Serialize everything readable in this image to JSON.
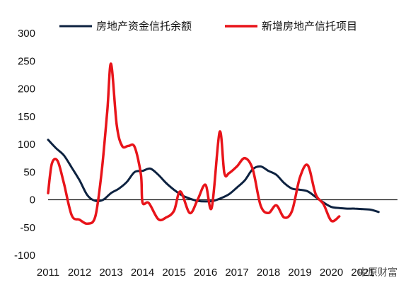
{
  "chart_data": {
    "type": "line",
    "title": "",
    "xlabel": "",
    "ylabel": "",
    "ylim": [
      -100,
      300
    ],
    "yticks": [
      300,
      250,
      200,
      150,
      100,
      50,
      0,
      -50,
      -100
    ],
    "xlim": [
      2011,
      2022.1
    ],
    "xticks": [
      "2011",
      "2012",
      "2013",
      "2014",
      "2015",
      "2016",
      "2017",
      "2018",
      "2019",
      "2020",
      "2021"
    ],
    "grid": false,
    "zero_line": true,
    "legend_position": "top",
    "series": [
      {
        "name": "房地产资金信托余额",
        "color": "#0d2240",
        "points": [
          [
            2011.0,
            108
          ],
          [
            2011.25,
            93
          ],
          [
            2011.5,
            80
          ],
          [
            2011.75,
            58
          ],
          [
            2012.0,
            35
          ],
          [
            2012.25,
            8
          ],
          [
            2012.5,
            -2
          ],
          [
            2012.75,
            0
          ],
          [
            2013.0,
            12
          ],
          [
            2013.25,
            20
          ],
          [
            2013.5,
            32
          ],
          [
            2013.75,
            50
          ],
          [
            2014.0,
            52
          ],
          [
            2014.25,
            56
          ],
          [
            2014.5,
            45
          ],
          [
            2014.75,
            30
          ],
          [
            2015.0,
            18
          ],
          [
            2015.25,
            8
          ],
          [
            2015.5,
            2
          ],
          [
            2015.75,
            -2
          ],
          [
            2016.0,
            -3
          ],
          [
            2016.25,
            -2
          ],
          [
            2016.5,
            3
          ],
          [
            2016.75,
            10
          ],
          [
            2017.0,
            22
          ],
          [
            2017.25,
            35
          ],
          [
            2017.5,
            55
          ],
          [
            2017.75,
            60
          ],
          [
            2018.0,
            52
          ],
          [
            2018.25,
            45
          ],
          [
            2018.5,
            30
          ],
          [
            2018.75,
            20
          ],
          [
            2019.0,
            18
          ],
          [
            2019.25,
            15
          ],
          [
            2019.5,
            5
          ],
          [
            2019.75,
            -5
          ],
          [
            2020.0,
            -13
          ],
          [
            2020.25,
            -15
          ],
          [
            2020.5,
            -16
          ],
          [
            2020.75,
            -16
          ],
          [
            2021.0,
            -17
          ],
          [
            2021.25,
            -18
          ],
          [
            2021.5,
            -22
          ]
        ]
      },
      {
        "name": "新增房地产信托项目",
        "color": "#e8141a",
        "points": [
          [
            2011.0,
            12
          ],
          [
            2011.12,
            65
          ],
          [
            2011.3,
            70
          ],
          [
            2011.5,
            30
          ],
          [
            2011.75,
            -28
          ],
          [
            2012.0,
            -36
          ],
          [
            2012.25,
            -43
          ],
          [
            2012.5,
            -30
          ],
          [
            2012.7,
            50
          ],
          [
            2012.88,
            160
          ],
          [
            2013.0,
            245
          ],
          [
            2013.18,
            135
          ],
          [
            2013.35,
            97
          ],
          [
            2013.55,
            97
          ],
          [
            2013.75,
            95
          ],
          [
            2013.95,
            45
          ],
          [
            2014.0,
            -5
          ],
          [
            2014.2,
            -6
          ],
          [
            2014.5,
            -35
          ],
          [
            2014.75,
            -32
          ],
          [
            2015.0,
            -20
          ],
          [
            2015.2,
            15
          ],
          [
            2015.5,
            -24
          ],
          [
            2015.75,
            0
          ],
          [
            2016.0,
            27
          ],
          [
            2016.2,
            -14
          ],
          [
            2016.45,
            122
          ],
          [
            2016.6,
            48
          ],
          [
            2016.75,
            48
          ],
          [
            2017.0,
            60
          ],
          [
            2017.25,
            75
          ],
          [
            2017.5,
            55
          ],
          [
            2017.75,
            -10
          ],
          [
            2018.0,
            -24
          ],
          [
            2018.25,
            -10
          ],
          [
            2018.5,
            -32
          ],
          [
            2018.75,
            -20
          ],
          [
            2019.0,
            40
          ],
          [
            2019.25,
            62
          ],
          [
            2019.5,
            10
          ],
          [
            2019.75,
            -8
          ],
          [
            2020.0,
            -38
          ],
          [
            2020.25,
            -30
          ]
        ]
      }
    ]
  },
  "watermark": "中原财富"
}
